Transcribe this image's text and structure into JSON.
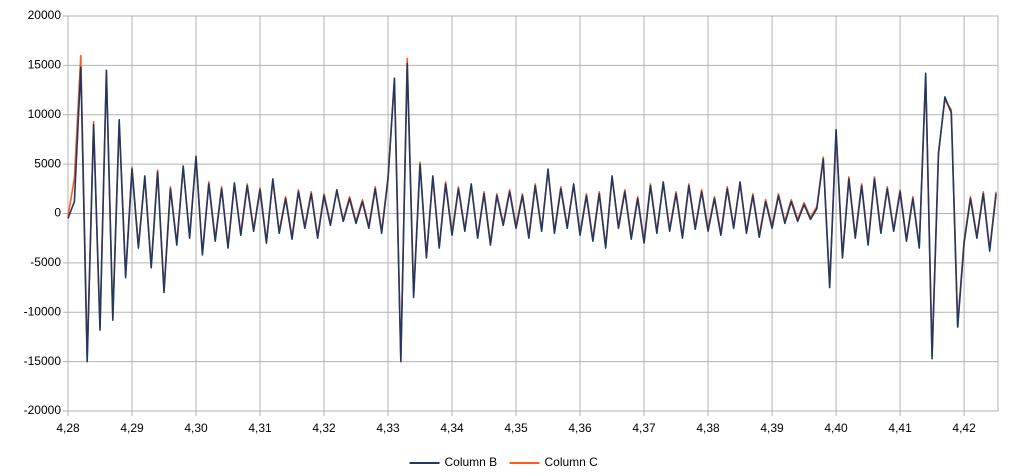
{
  "chart_data": {
    "type": "line",
    "x": [
      4.28,
      4.281,
      4.282,
      4.283,
      4.284,
      4.285,
      4.286,
      4.287,
      4.288,
      4.289,
      4.29,
      4.291,
      4.292,
      4.293,
      4.294,
      4.295,
      4.296,
      4.297,
      4.298,
      4.299,
      4.3,
      4.301,
      4.302,
      4.303,
      4.304,
      4.305,
      4.306,
      4.307,
      4.308,
      4.309,
      4.31,
      4.311,
      4.312,
      4.313,
      4.314,
      4.315,
      4.316,
      4.317,
      4.318,
      4.319,
      4.32,
      4.321,
      4.322,
      4.323,
      4.324,
      4.325,
      4.326,
      4.327,
      4.328,
      4.329,
      4.33,
      4.331,
      4.332,
      4.333,
      4.334,
      4.335,
      4.336,
      4.337,
      4.338,
      4.339,
      4.34,
      4.341,
      4.342,
      4.343,
      4.344,
      4.345,
      4.346,
      4.347,
      4.348,
      4.349,
      4.35,
      4.351,
      4.352,
      4.353,
      4.354,
      4.355,
      4.356,
      4.357,
      4.358,
      4.359,
      4.36,
      4.361,
      4.362,
      4.363,
      4.364,
      4.365,
      4.366,
      4.367,
      4.368,
      4.369,
      4.37,
      4.371,
      4.372,
      4.373,
      4.374,
      4.375,
      4.376,
      4.377,
      4.378,
      4.379,
      4.38,
      4.381,
      4.382,
      4.383,
      4.384,
      4.385,
      4.386,
      4.387,
      4.388,
      4.389,
      4.39,
      4.391,
      4.392,
      4.393,
      4.394,
      4.395,
      4.396,
      4.397,
      4.398,
      4.399,
      4.4,
      4.401,
      4.402,
      4.403,
      4.404,
      4.405,
      4.406,
      4.407,
      4.408,
      4.409,
      4.41,
      4.411,
      4.412,
      4.413,
      4.414,
      4.415,
      4.416,
      4.417,
      4.418,
      4.419,
      4.42,
      4.421,
      4.422,
      4.423,
      4.424,
      4.425
    ],
    "series": [
      {
        "name": "Column B",
        "color": "#203864",
        "values": [
          -500,
          1200,
          14800,
          -15000,
          9000,
          -11800,
          14500,
          -10800,
          9500,
          -6500,
          4500,
          -3500,
          3800,
          -5500,
          4200,
          -8000,
          2500,
          -3200,
          4800,
          -2500,
          5800,
          -4200,
          3000,
          -2800,
          2500,
          -3500,
          3100,
          -2200,
          2800,
          -1800,
          2400,
          -3000,
          3500,
          -2000,
          1500,
          -2600,
          2200,
          -1500,
          2000,
          -2500,
          1800,
          -1200,
          2400,
          -800,
          1500,
          -1000,
          1200,
          -1500,
          2500,
          -2000,
          3500,
          13700,
          -15000,
          15200,
          -8500,
          5000,
          -4500,
          3800,
          -3500,
          3000,
          -2200,
          2500,
          -1800,
          3000,
          -2500,
          2000,
          -3200,
          1800,
          -1200,
          2200,
          -1500,
          1800,
          -2500,
          2800,
          -1800,
          4500,
          -2000,
          2500,
          -1500,
          3000,
          -2200,
          1800,
          -2800,
          2000,
          -3500,
          3800,
          -1500,
          2200,
          -2600,
          1500,
          -3000,
          2800,
          -2000,
          3200,
          -1800,
          2000,
          -2500,
          2800,
          -1600,
          2200,
          -1800,
          1500,
          -2200,
          2500,
          -1500,
          3200,
          -2000,
          1800,
          -2400,
          1200,
          -1500,
          1800,
          -1000,
          1200,
          -800,
          900,
          -600,
          500,
          5500,
          -7500,
          8500,
          -4500,
          3500,
          -2500,
          2800,
          -3200,
          3500,
          -2000,
          2500,
          -1800,
          2200,
          -2800,
          1500,
          -3500,
          14200,
          -14700,
          6000,
          11800,
          10200,
          -11500,
          -3000,
          1500,
          -2500,
          2000,
          -3800,
          2000
        ]
      },
      {
        "name": "Column C",
        "color": "#ff5a1f",
        "values": [
          -300,
          3600,
          16000,
          -14500,
          9300,
          -11500,
          14200,
          -10500,
          9200,
          -6200,
          4700,
          -3300,
          3600,
          -5300,
          4400,
          -7800,
          2700,
          -3000,
          4600,
          -2300,
          5600,
          -4000,
          3200,
          -2600,
          2700,
          -3300,
          2900,
          -2000,
          3000,
          -1600,
          2600,
          -2800,
          3300,
          -1800,
          1700,
          -2400,
          2400,
          -1300,
          2200,
          -2300,
          2000,
          -1000,
          2200,
          -600,
          1700,
          -800,
          1400,
          -1300,
          2700,
          -1800,
          3700,
          13400,
          -14700,
          15700,
          -8200,
          5200,
          -4300,
          3600,
          -3300,
          3200,
          -2000,
          2700,
          -1600,
          2800,
          -2300,
          2200,
          -3000,
          2000,
          -1000,
          2400,
          -1300,
          2000,
          -2300,
          3000,
          -1600,
          4300,
          -1800,
          2700,
          -1300,
          2800,
          -2000,
          2000,
          -2600,
          2200,
          -3300,
          3600,
          -1300,
          2400,
          -2400,
          1700,
          -2800,
          3000,
          -1800,
          3000,
          -1600,
          2200,
          -2300,
          3000,
          -1400,
          2400,
          -1600,
          1700,
          -2000,
          2700,
          -1300,
          3000,
          -1800,
          2000,
          -2200,
          1400,
          -1300,
          2000,
          -800,
          1400,
          -600,
          1100,
          -400,
          700,
          5700,
          -7200,
          8200,
          -4300,
          3700,
          -2300,
          3000,
          -3000,
          3700,
          -1800,
          2700,
          -1600,
          2400,
          -2600,
          1700,
          -3300,
          13800,
          -14200,
          6200,
          11500,
          10500,
          -11200,
          -2800,
          1700,
          -2300,
          2200,
          -3600,
          2200
        ]
      }
    ],
    "xlim": [
      4.28,
      4.4253
    ],
    "xticks": [
      {
        "value": 4.28,
        "label": "4,28"
      },
      {
        "value": 4.29,
        "label": "4,29"
      },
      {
        "value": 4.3,
        "label": "4,30"
      },
      {
        "value": 4.31,
        "label": "4,31"
      },
      {
        "value": 4.32,
        "label": "4,32"
      },
      {
        "value": 4.33,
        "label": "4,33"
      },
      {
        "value": 4.34,
        "label": "4,34"
      },
      {
        "value": 4.35,
        "label": "4,35"
      },
      {
        "value": 4.36,
        "label": "4,36"
      },
      {
        "value": 4.37,
        "label": "4,37"
      },
      {
        "value": 4.38,
        "label": "4,38"
      },
      {
        "value": 4.39,
        "label": "4,39"
      },
      {
        "value": 4.4,
        "label": "4,40"
      },
      {
        "value": 4.41,
        "label": "4,41"
      },
      {
        "value": 4.42,
        "label": "4,42"
      }
    ],
    "ylim": [
      -20000,
      20000
    ],
    "yticks": [
      -20000,
      -15000,
      -10000,
      -5000,
      0,
      5000,
      10000,
      15000,
      20000
    ],
    "grid": true,
    "legend": "bottom"
  }
}
